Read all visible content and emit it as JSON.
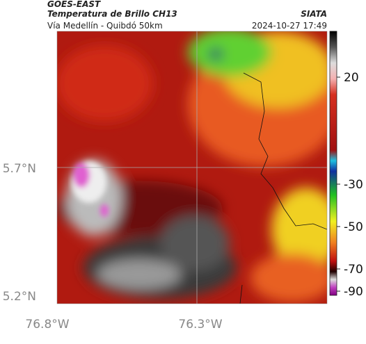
{
  "header": {
    "source": "GOES-EAST",
    "title": "Temperatura de Brillo CH13",
    "place": "Vía Medellín - Quibdó 50km",
    "org": "SIATA",
    "datetime": "2024-10-27 17:49"
  },
  "map": {
    "lat_labels": [
      "5.7°N",
      "5.2°N"
    ],
    "lon_labels": [
      "76.8°W",
      "76.3°W"
    ]
  },
  "colorbar": {
    "ticks": [
      "20",
      "-30",
      "-50",
      "-70",
      "-90"
    ]
  }
}
